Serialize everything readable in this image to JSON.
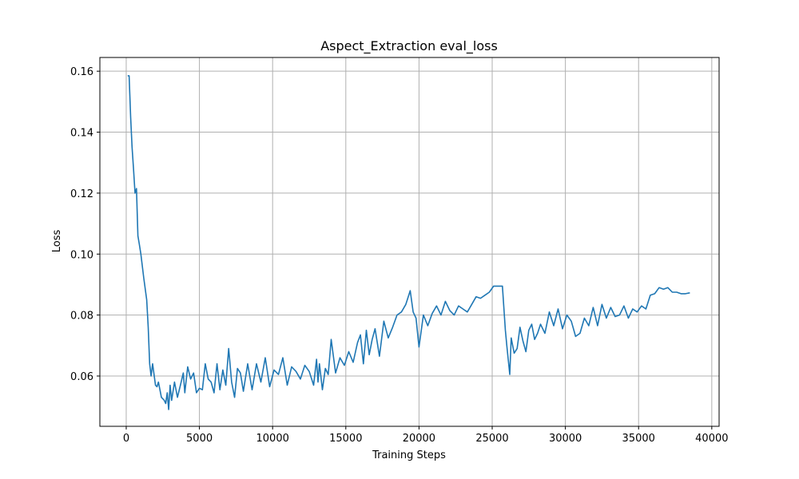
{
  "chart_data": {
    "type": "line",
    "title": "Aspect_Extraction eval_loss",
    "xlabel": "Training Steps",
    "ylabel": "Loss",
    "xlim": [
      -1800,
      40500
    ],
    "ylim": [
      0.0435,
      0.1645
    ],
    "xticks": [
      0,
      5000,
      10000,
      15000,
      20000,
      25000,
      30000,
      35000,
      40000
    ],
    "xtick_labels": [
      "0",
      "5000",
      "10000",
      "15000",
      "20000",
      "25000",
      "30000",
      "35000",
      "40000"
    ],
    "yticks": [
      0.06,
      0.08,
      0.1,
      0.12,
      0.14,
      0.16
    ],
    "ytick_labels": [
      "0.06",
      "0.08",
      "0.10",
      "0.12",
      "0.14",
      "0.16"
    ],
    "grid": true,
    "line_color": "#1f77b4",
    "series": [
      {
        "x": [
          100,
          200,
          300,
          400,
          500,
          600,
          700,
          800,
          900,
          1000,
          1200,
          1400,
          1500,
          1600,
          1700,
          1800,
          2000,
          2100,
          2200,
          2400,
          2500,
          2600,
          2700,
          2800,
          2900,
          3000,
          3100,
          3300,
          3500,
          3700,
          3900,
          4000,
          4200,
          4400,
          4600,
          4800,
          5000,
          5200,
          5400,
          5600,
          5800,
          6000,
          6200,
          6400,
          6600,
          6800,
          7000,
          7200,
          7400,
          7600,
          7800,
          8000,
          8300,
          8600,
          8900,
          9200,
          9500,
          9800,
          10100,
          10400,
          10700,
          11000,
          11300,
          11600,
          11900,
          12200,
          12500,
          12800,
          13000,
          13100,
          13200,
          13400,
          13600,
          13800,
          14000,
          14300,
          14600,
          14900,
          15200,
          15500,
          15800,
          16000,
          16200,
          16400,
          16600,
          16800,
          17000,
          17300,
          17600,
          17900,
          18200,
          18500,
          18800,
          19100,
          19400,
          19600,
          19800,
          20000,
          20300,
          20600,
          20900,
          21200,
          21500,
          21800,
          22100,
          22400,
          22700,
          23000,
          23300,
          23600,
          23900,
          24200,
          24500,
          24800,
          25100,
          25400,
          25700,
          25900,
          26000,
          26200,
          26300,
          26500,
          26700,
          26900,
          27100,
          27300,
          27500,
          27700,
          27900,
          28100,
          28300,
          28600,
          28900,
          29200,
          29500,
          29800,
          30100,
          30400,
          30700,
          31000,
          31300,
          31600,
          31900,
          32200,
          32500,
          32800,
          33100,
          33400,
          33700,
          34000,
          34300,
          34600,
          34900,
          35200,
          35500,
          35800,
          36100,
          36400,
          36700,
          37000,
          37300,
          37600,
          37900,
          38200,
          38500
        ],
        "y": [
          0.1585,
          0.1585,
          0.145,
          0.135,
          0.128,
          0.12,
          0.1215,
          0.106,
          0.103,
          0.1,
          0.092,
          0.085,
          0.076,
          0.064,
          0.06,
          0.064,
          0.057,
          0.0565,
          0.058,
          0.053,
          0.0525,
          0.052,
          0.051,
          0.0545,
          0.049,
          0.057,
          0.052,
          0.058,
          0.053,
          0.057,
          0.061,
          0.0545,
          0.063,
          0.059,
          0.061,
          0.0545,
          0.056,
          0.0555,
          0.064,
          0.059,
          0.058,
          0.0545,
          0.064,
          0.0555,
          0.062,
          0.057,
          0.069,
          0.058,
          0.053,
          0.0625,
          0.061,
          0.055,
          0.064,
          0.0555,
          0.064,
          0.058,
          0.066,
          0.0565,
          0.062,
          0.0605,
          0.066,
          0.057,
          0.063,
          0.0615,
          0.059,
          0.0635,
          0.0615,
          0.057,
          0.0655,
          0.058,
          0.064,
          0.0555,
          0.0625,
          0.0605,
          0.072,
          0.061,
          0.066,
          0.0635,
          0.068,
          0.0645,
          0.071,
          0.0735,
          0.064,
          0.075,
          0.067,
          0.072,
          0.0755,
          0.0665,
          0.078,
          0.0725,
          0.076,
          0.08,
          0.081,
          0.0835,
          0.088,
          0.081,
          0.079,
          0.0695,
          0.08,
          0.0765,
          0.0805,
          0.083,
          0.08,
          0.0845,
          0.0815,
          0.08,
          0.083,
          0.082,
          0.081,
          0.0835,
          0.086,
          0.0855,
          0.0865,
          0.0875,
          0.0895,
          0.0895,
          0.0895,
          0.075,
          0.07,
          0.0605,
          0.0725,
          0.0675,
          0.069,
          0.076,
          0.0715,
          0.068,
          0.075,
          0.077,
          0.072,
          0.074,
          0.077,
          0.074,
          0.081,
          0.0765,
          0.082,
          0.0755,
          0.08,
          0.078,
          0.073,
          0.074,
          0.079,
          0.0765,
          0.0825,
          0.0765,
          0.0835,
          0.079,
          0.0825,
          0.0795,
          0.08,
          0.083,
          0.079,
          0.082,
          0.081,
          0.083,
          0.082,
          0.0865,
          0.087,
          0.089,
          0.0885,
          0.089,
          0.0875,
          0.0875,
          0.087,
          0.087,
          0.0873
        ]
      }
    ]
  }
}
